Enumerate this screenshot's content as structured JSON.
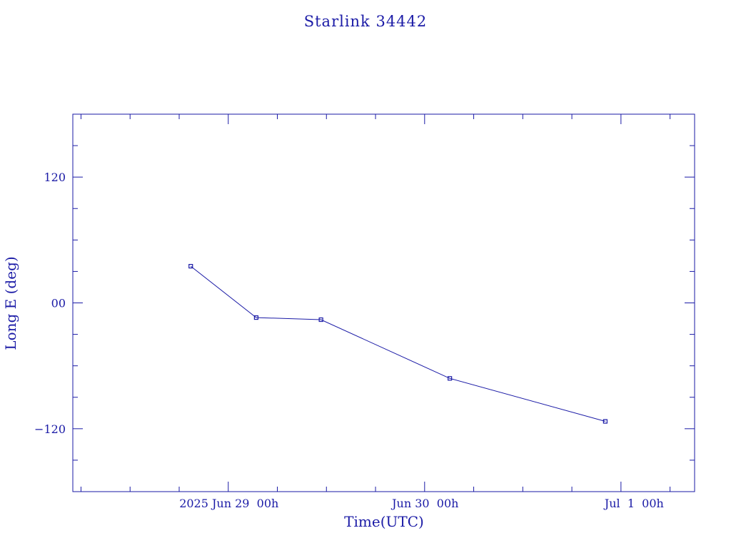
{
  "chart_data": {
    "type": "line",
    "title": "Starlink 34442",
    "xlabel": "Time(UTC)",
    "ylabel": "Long E (deg)",
    "x_unit": "hours",
    "xlim": [
      "2025-06-28T05:00",
      "2025-07-01T09:00"
    ],
    "ylim": [
      -180,
      180
    ],
    "y_ticks_major": [
      -120,
      0,
      120
    ],
    "y_tick_labels": [
      "−120",
      "00",
      "120"
    ],
    "x_tick_labels": [
      {
        "t": "2025-06-29T00:00",
        "label": "2025 Jun 29  00h"
      },
      {
        "t": "2025-06-30T00:00",
        "label": "Jun 30  00h"
      },
      {
        "t": "2025-07-01T00:00",
        "label": "Jul  1  00h"
      }
    ],
    "series": [
      {
        "name": "",
        "x": [
          "2025-06-28T19:25",
          "2025-06-29T03:25",
          "2025-06-29T11:20",
          "2025-06-30T03:05",
          "2025-06-30T22:05"
        ],
        "y": [
          35,
          -14,
          -16,
          -72,
          -113
        ]
      }
    ],
    "grid": false,
    "legend": "none"
  },
  "colors": {
    "ink": "#1a1aa6",
    "background": "#ffffff"
  }
}
